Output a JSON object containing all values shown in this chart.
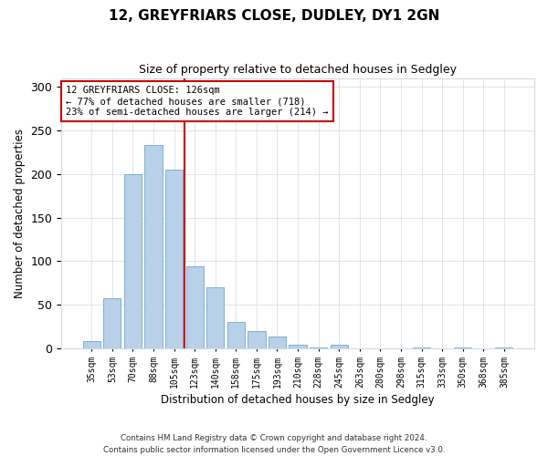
{
  "title1": "12, GREYFRIARS CLOSE, DUDLEY, DY1 2GN",
  "title2": "Size of property relative to detached houses in Sedgley",
  "xlabel": "Distribution of detached houses by size in Sedgley",
  "ylabel": "Number of detached properties",
  "categories": [
    "35sqm",
    "53sqm",
    "70sqm",
    "88sqm",
    "105sqm",
    "123sqm",
    "140sqm",
    "158sqm",
    "175sqm",
    "193sqm",
    "210sqm",
    "228sqm",
    "245sqm",
    "263sqm",
    "280sqm",
    "298sqm",
    "315sqm",
    "333sqm",
    "350sqm",
    "368sqm",
    "385sqm"
  ],
  "values": [
    9,
    58,
    200,
    233,
    205,
    94,
    70,
    30,
    20,
    14,
    4,
    1,
    4,
    0,
    0,
    0,
    1,
    0,
    1,
    0,
    1
  ],
  "bar_color": "#b8d0e8",
  "bar_edge_color": "#6fa8d0",
  "marker_line_index": 5,
  "marker_line_color": "#cc0000",
  "annotation_text": "12 GREYFRIARS CLOSE: 126sqm\n← 77% of detached houses are smaller (718)\n23% of semi-detached houses are larger (214) →",
  "annotation_box_color": "#ffffff",
  "annotation_box_edge_color": "#cc0000",
  "ylim": [
    0,
    310
  ],
  "yticks": [
    0,
    50,
    100,
    150,
    200,
    250,
    300
  ],
  "footer": "Contains HM Land Registry data © Crown copyright and database right 2024.\nContains public sector information licensed under the Open Government Licence v3.0.",
  "bg_color": "#ffffff",
  "plot_bg_color": "#ffffff",
  "grid_color": "#d0dce8"
}
